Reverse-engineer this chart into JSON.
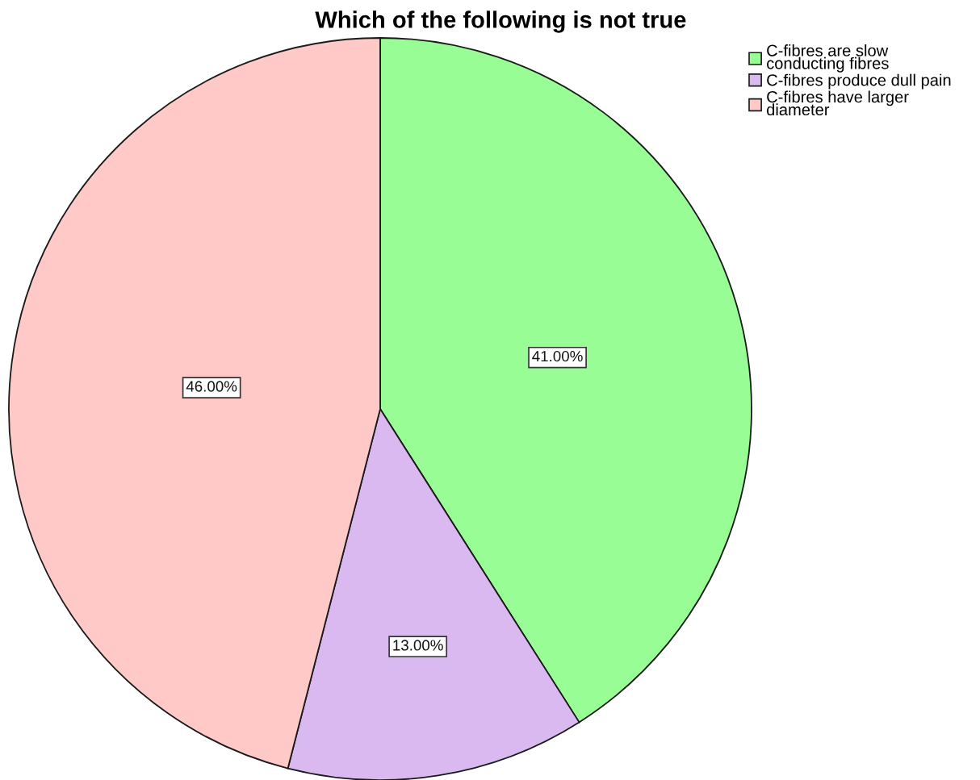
{
  "chart_data": {
    "type": "pie",
    "title": "Which of the following is not true",
    "categories": [
      "C-fibres are slow conducting fibres",
      "C-fibres produce dull pain",
      "C-fibres have larger diameter"
    ],
    "values": [
      41,
      13,
      46
    ],
    "colors": [
      "#99fd95",
      "#dab9f1",
      "#fec9c7"
    ],
    "value_labels": [
      "41.00%",
      "13.00%",
      "46.00%"
    ],
    "legend": "top right"
  }
}
